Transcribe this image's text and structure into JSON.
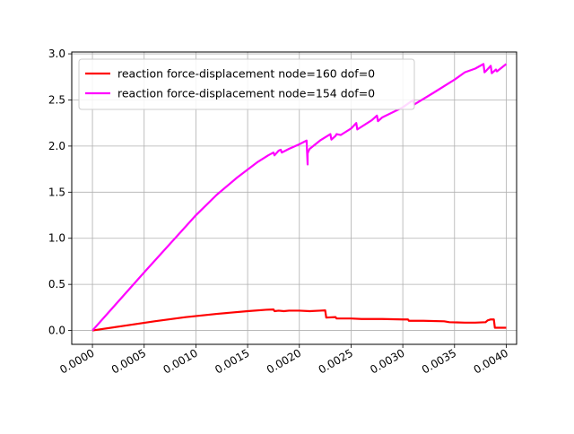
{
  "chart_data": {
    "type": "line",
    "title": "",
    "xlabel": "",
    "ylabel": "",
    "xlim": [
      -0.0002,
      0.0041
    ],
    "ylim": [
      -0.15,
      3.02
    ],
    "grid": true,
    "legend_position": "top-left",
    "x_ticks": [
      {
        "value": 0.0,
        "label": "0.0000"
      },
      {
        "value": 0.0005,
        "label": "0.0005"
      },
      {
        "value": 0.001,
        "label": "0.0010"
      },
      {
        "value": 0.0015,
        "label": "0.0015"
      },
      {
        "value": 0.002,
        "label": "0.0020"
      },
      {
        "value": 0.0025,
        "label": "0.0025"
      },
      {
        "value": 0.003,
        "label": "0.0030"
      },
      {
        "value": 0.0035,
        "label": "0.0035"
      },
      {
        "value": 0.004,
        "label": "0.0040"
      }
    ],
    "y_ticks": [
      {
        "value": 0.0,
        "label": "0.0"
      },
      {
        "value": 0.5,
        "label": "0.5"
      },
      {
        "value": 1.0,
        "label": "1.0"
      },
      {
        "value": 1.5,
        "label": "1.5"
      },
      {
        "value": 2.0,
        "label": "2.0"
      },
      {
        "value": 2.5,
        "label": "2.5"
      },
      {
        "value": 3.0,
        "label": "3.0"
      }
    ],
    "series": [
      {
        "name": "reaction force-displacement node=160 dof=0",
        "color": "#ff0000",
        "x": [
          0.0,
          0.0003,
          0.0006,
          0.0009,
          0.0012,
          0.0015,
          0.00168,
          0.00175,
          0.00176,
          0.0018,
          0.00185,
          0.0019,
          0.002,
          0.0021,
          0.0022,
          0.00225,
          0.00226,
          0.00235,
          0.00236,
          0.0025,
          0.0026,
          0.0028,
          0.003,
          0.00305,
          0.00306,
          0.0032,
          0.0034,
          0.00345,
          0.0036,
          0.0037,
          0.0038,
          0.00382,
          0.00385,
          0.00388,
          0.00389,
          0.0039,
          0.004
        ],
        "y": [
          0.0,
          0.05,
          0.1,
          0.145,
          0.18,
          0.21,
          0.225,
          0.228,
          0.21,
          0.215,
          0.21,
          0.215,
          0.215,
          0.21,
          0.215,
          0.218,
          0.14,
          0.145,
          0.13,
          0.13,
          0.125,
          0.125,
          0.12,
          0.12,
          0.105,
          0.105,
          0.1,
          0.09,
          0.085,
          0.085,
          0.09,
          0.11,
          0.12,
          0.12,
          0.03,
          0.03,
          0.03
        ]
      },
      {
        "name": "reaction force-displacement node=154 dof=0",
        "color": "#ff00ff",
        "x": [
          0.0,
          0.0005,
          0.001,
          0.0012,
          0.0014,
          0.0016,
          0.0017,
          0.00175,
          0.00176,
          0.0018,
          0.00182,
          0.00183,
          0.0019,
          0.002,
          0.00207,
          0.00208,
          0.00208,
          0.00209,
          0.0021,
          0.0022,
          0.0023,
          0.00231,
          0.00235,
          0.00236,
          0.0024,
          0.0025,
          0.00255,
          0.00256,
          0.0027,
          0.00275,
          0.00276,
          0.0028,
          0.003,
          0.0031,
          0.00311,
          0.0033,
          0.0035,
          0.0036,
          0.0037,
          0.00378,
          0.00379,
          0.0038,
          0.00385,
          0.00386,
          0.0039,
          0.00391,
          0.004
        ],
        "y": [
          0.0,
          0.63,
          1.25,
          1.47,
          1.66,
          1.83,
          1.9,
          1.93,
          1.9,
          1.95,
          1.96,
          1.93,
          1.97,
          2.02,
          2.06,
          1.8,
          1.92,
          1.95,
          1.97,
          2.06,
          2.13,
          2.07,
          2.11,
          2.13,
          2.12,
          2.19,
          2.25,
          2.18,
          2.28,
          2.33,
          2.27,
          2.31,
          2.42,
          2.5,
          2.45,
          2.58,
          2.72,
          2.8,
          2.84,
          2.89,
          2.8,
          2.81,
          2.87,
          2.79,
          2.83,
          2.81,
          2.89
        ]
      }
    ]
  }
}
